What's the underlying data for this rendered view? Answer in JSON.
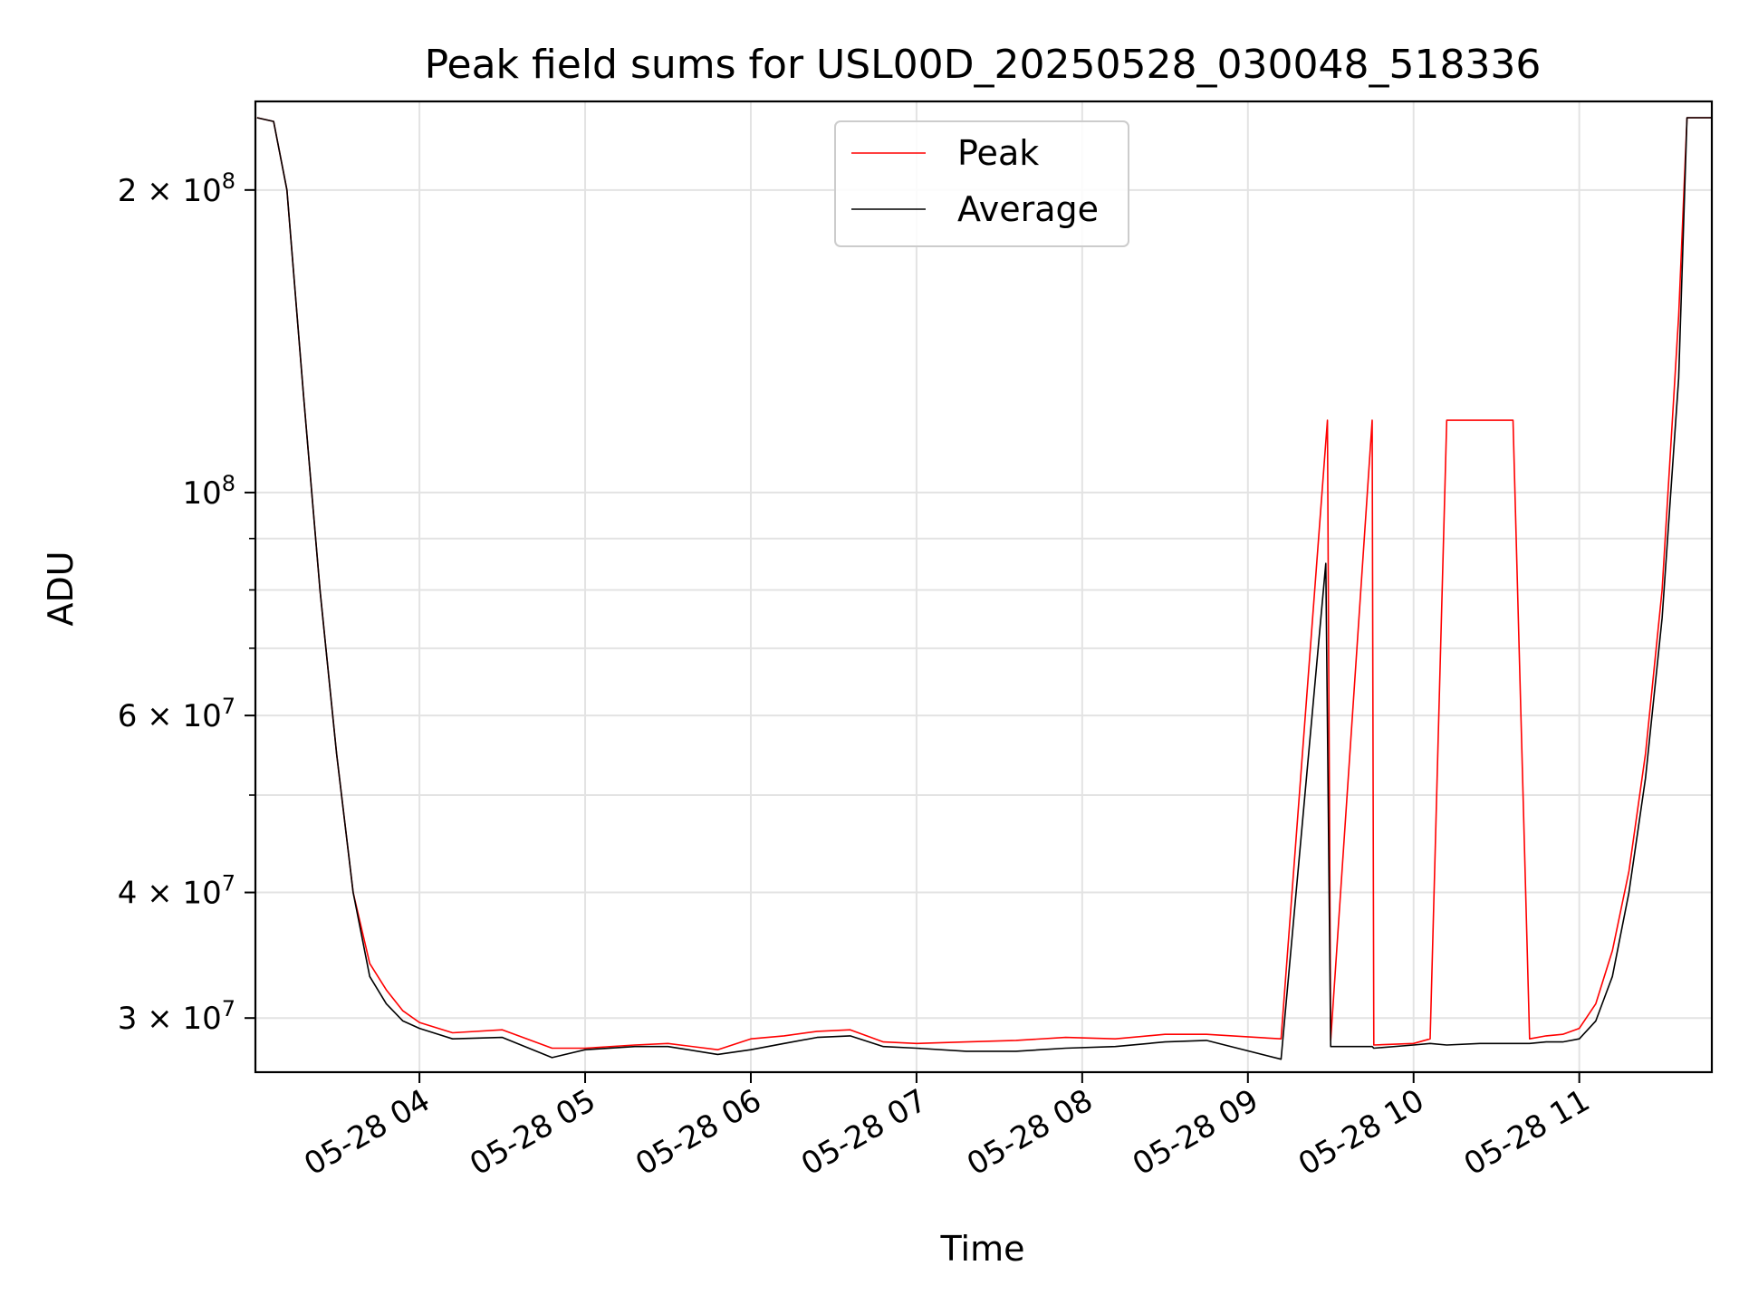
{
  "chart_data": {
    "type": "line",
    "title": "Peak field sums for USL00D_20250528_030048_518336",
    "xlabel": "Time",
    "ylabel": "ADU",
    "yscale": "log",
    "ylim": [
      26500000,
      245000000
    ],
    "xlim_hours": [
      3.01,
      11.8
    ],
    "grid": true,
    "legend_position": "top-center",
    "x_ticks": [
      {
        "value": 4,
        "label": "05-28 04"
      },
      {
        "value": 5,
        "label": "05-28 05"
      },
      {
        "value": 6,
        "label": "05-28 06"
      },
      {
        "value": 7,
        "label": "05-28 07"
      },
      {
        "value": 8,
        "label": "05-28 08"
      },
      {
        "value": 9,
        "label": "05-28 09"
      },
      {
        "value": 10,
        "label": "05-28 10"
      },
      {
        "value": 11,
        "label": "05-28 11"
      }
    ],
    "y_ticks_major": [
      {
        "value": 30000000,
        "mantissa": "3",
        "exponent": "7"
      },
      {
        "value": 40000000,
        "mantissa": "4",
        "exponent": "7"
      },
      {
        "value": 60000000,
        "mantissa": "6",
        "exponent": "7"
      },
      {
        "value": 100000000,
        "mantissa": "",
        "exponent": "8"
      },
      {
        "value": 200000000,
        "mantissa": "2",
        "exponent": "8"
      }
    ],
    "y_ticks_minor": [
      50000000,
      70000000,
      80000000,
      90000000
    ],
    "series": [
      {
        "name": "Peak",
        "color": "#ff0000",
        "x": [
          3.02,
          3.12,
          3.2,
          3.3,
          3.4,
          3.5,
          3.6,
          3.7,
          3.8,
          3.9,
          4.0,
          4.2,
          4.5,
          4.8,
          5.0,
          5.3,
          5.5,
          5.8,
          6.0,
          6.2,
          6.4,
          6.6,
          6.8,
          7.0,
          7.3,
          7.6,
          7.9,
          8.2,
          8.5,
          8.75,
          9.2,
          9.48,
          9.5,
          9.75,
          9.76,
          10.0,
          10.1,
          10.2,
          10.4,
          10.6,
          10.7,
          10.8,
          10.9,
          11.0,
          11.1,
          11.2,
          11.3,
          11.4,
          11.5,
          11.6,
          11.65,
          11.8
        ],
        "values": [
          236000000,
          234000000,
          200000000,
          125000000,
          80000000,
          55000000,
          40000000,
          34000000,
          32000000,
          30500000,
          29700000,
          29000000,
          29200000,
          28000000,
          28000000,
          28200000,
          28300000,
          27900000,
          28600000,
          28800000,
          29100000,
          29200000,
          28400000,
          28300000,
          28400000,
          28500000,
          28700000,
          28600000,
          28900000,
          28900000,
          28600000,
          118000000,
          28500000,
          118000000,
          28200000,
          28300000,
          28600000,
          118000000,
          118000000,
          118000000,
          28600000,
          28800000,
          28900000,
          29300000,
          31000000,
          35000000,
          42000000,
          55000000,
          80000000,
          150000000,
          236000000,
          236000000
        ]
      },
      {
        "name": "Average",
        "color": "#000000",
        "x": [
          3.02,
          3.12,
          3.2,
          3.3,
          3.4,
          3.5,
          3.6,
          3.7,
          3.8,
          3.9,
          4.0,
          4.2,
          4.5,
          4.8,
          5.0,
          5.3,
          5.5,
          5.8,
          6.0,
          6.2,
          6.4,
          6.6,
          6.8,
          7.0,
          7.3,
          7.6,
          7.9,
          8.2,
          8.5,
          8.75,
          9.2,
          9.47,
          9.5,
          9.75,
          9.76,
          10.0,
          10.1,
          10.2,
          10.4,
          10.6,
          10.7,
          10.8,
          10.9,
          11.0,
          11.1,
          11.2,
          11.3,
          11.4,
          11.5,
          11.6,
          11.65,
          11.8
        ],
        "values": [
          236000000,
          234000000,
          200000000,
          125000000,
          80000000,
          55000000,
          40000000,
          33000000,
          31000000,
          29800000,
          29300000,
          28600000,
          28700000,
          27400000,
          27900000,
          28100000,
          28100000,
          27600000,
          27900000,
          28300000,
          28700000,
          28800000,
          28100000,
          28000000,
          27800000,
          27800000,
          28000000,
          28100000,
          28400000,
          28500000,
          27300000,
          85000000,
          28100000,
          28100000,
          28000000,
          28200000,
          28300000,
          28200000,
          28300000,
          28300000,
          28300000,
          28400000,
          28400000,
          28600000,
          29800000,
          33000000,
          40000000,
          52000000,
          75000000,
          130000000,
          236000000,
          236000000
        ]
      }
    ]
  }
}
